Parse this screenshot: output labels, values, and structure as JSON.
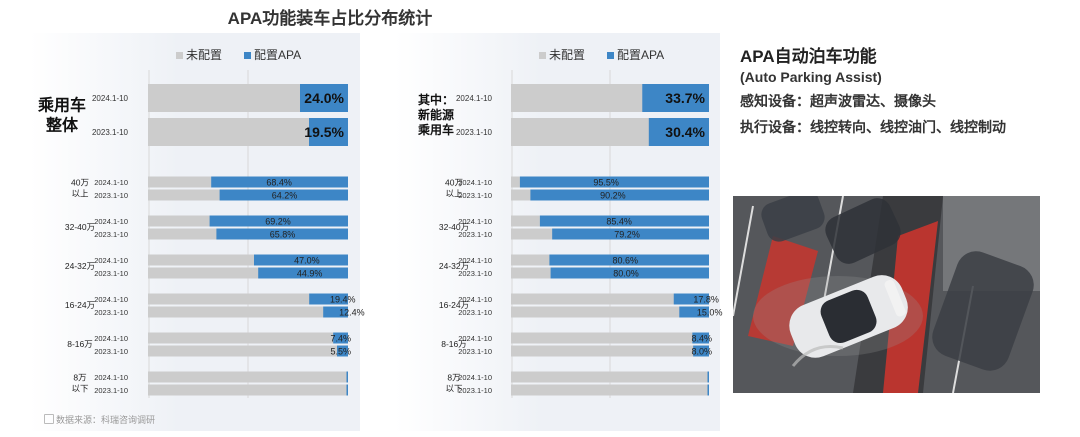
{
  "title": "APA功能装车占比分布统计",
  "colors": {
    "unconfigured": "#cccccc",
    "apa": "#3d86c6",
    "apa_dark": "#2a6fae"
  },
  "source": "数据来源：科瑞咨询调研",
  "apa_info": {
    "title": "APA自动泊车功能",
    "subtitle": "(Auto Parking Assist)",
    "sensing": "感知设备：超声波雷达、摄像头",
    "execution": "执行设备：线控转向、线控油门、线控制动"
  },
  "chart_data": [
    {
      "type": "bar",
      "orientation": "horizontal",
      "legend": [
        "未配置",
        "配置APA"
      ],
      "legend_position": "top",
      "xlim": [
        0,
        100
      ],
      "overall": {
        "label": "乘用车\n整体",
        "rows": [
          {
            "period": "2024.1-10",
            "value": 24.0,
            "value_label": "24.0%"
          },
          {
            "period": "2023.1-10",
            "value": 19.5,
            "value_label": "19.5%"
          }
        ]
      },
      "groups": [
        {
          "label": "40万\n以上",
          "rows": [
            {
              "period": "2024.1-10",
              "value": 68.4,
              "value_label": "68.4%"
            },
            {
              "period": "2023.1-10",
              "value": 64.2,
              "value_label": "64.2%"
            }
          ]
        },
        {
          "label": "32-40万",
          "rows": [
            {
              "period": "2024.1-10",
              "value": 69.2,
              "value_label": "69.2%"
            },
            {
              "period": "2023.1-10",
              "value": 65.8,
              "value_label": "65.8%"
            }
          ]
        },
        {
          "label": "24-32万",
          "rows": [
            {
              "period": "2024.1-10",
              "value": 47.0,
              "value_label": "47.0%"
            },
            {
              "period": "2023.1-10",
              "value": 44.9,
              "value_label": "44.9%"
            }
          ]
        },
        {
          "label": "16-24万",
          "rows": [
            {
              "period": "2024.1-10",
              "value": 19.4,
              "value_label": "19.4%"
            },
            {
              "period": "2023.1-10",
              "value": 12.4,
              "value_label": "12.4%"
            }
          ]
        },
        {
          "label": "8-16万",
          "rows": [
            {
              "period": "2024.1-10",
              "value": 7.4,
              "value_label": "7.4%"
            },
            {
              "period": "2023.1-10",
              "value": 5.5,
              "value_label": "5.5%"
            }
          ]
        },
        {
          "label": "8万\n以下",
          "rows": [
            {
              "period": "2024.1-10",
              "value": 0.5,
              "value_label": ""
            },
            {
              "period": "2023.1-10",
              "value": 0.4,
              "value_label": ""
            }
          ]
        }
      ]
    },
    {
      "type": "bar",
      "orientation": "horizontal",
      "legend": [
        "未配置",
        "配置APA"
      ],
      "legend_position": "top",
      "xlim": [
        0,
        100
      ],
      "overall": {
        "label": "其中：\n新能源\n乘用车",
        "rows": [
          {
            "period": "2024.1-10",
            "value": 33.7,
            "value_label": "33.7%"
          },
          {
            "period": "2023.1-10",
            "value": 30.4,
            "value_label": "30.4%"
          }
        ]
      },
      "groups": [
        {
          "label": "40万\n以上",
          "rows": [
            {
              "period": "2024.1-10",
              "value": 95.5,
              "value_label": "95.5%"
            },
            {
              "period": "2023.1-10",
              "value": 90.2,
              "value_label": "90.2%"
            }
          ]
        },
        {
          "label": "32-40万",
          "rows": [
            {
              "period": "2024.1-10",
              "value": 85.4,
              "value_label": "85.4%"
            },
            {
              "period": "2023.1-10",
              "value": 79.2,
              "value_label": "79.2%"
            }
          ]
        },
        {
          "label": "24-32万",
          "rows": [
            {
              "period": "2024.1-10",
              "value": 80.6,
              "value_label": "80.6%"
            },
            {
              "period": "2023.1-10",
              "value": 80.0,
              "value_label": "80.0%"
            }
          ]
        },
        {
          "label": "16-24万",
          "rows": [
            {
              "period": "2024.1-10",
              "value": 17.8,
              "value_label": "17.8%"
            },
            {
              "period": "2023.1-10",
              "value": 15.0,
              "value_label": "15.0%"
            }
          ]
        },
        {
          "label": "8-16万",
          "rows": [
            {
              "period": "2024.1-10",
              "value": 8.4,
              "value_label": "8.4%"
            },
            {
              "period": "2023.1-10",
              "value": 8.0,
              "value_label": "8.0%"
            }
          ]
        },
        {
          "label": "8万\n以下",
          "rows": [
            {
              "period": "2024.1-10",
              "value": 0.4,
              "value_label": ""
            },
            {
              "period": "2023.1-10",
              "value": 0.3,
              "value_label": ""
            }
          ]
        }
      ]
    }
  ]
}
